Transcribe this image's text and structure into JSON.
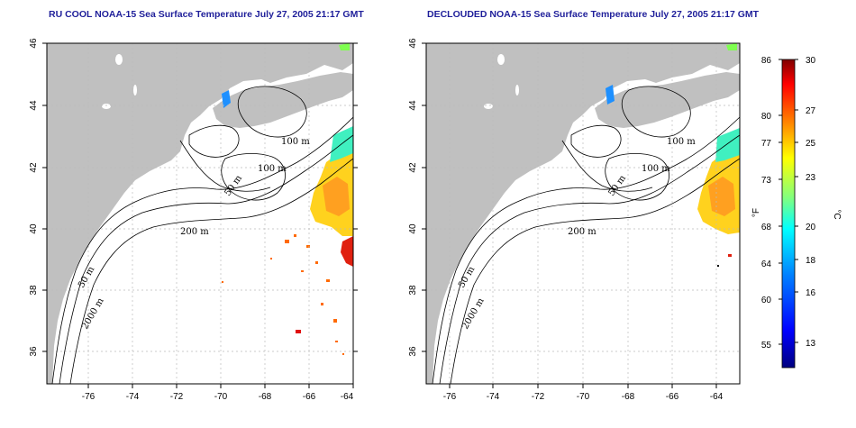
{
  "panels": [
    {
      "id": "left",
      "title": "RU COOL NOAA-15 Sea Surface Temperature July 27, 2005 21:17 GMT",
      "contour_labels": [
        "100 m",
        "100 m",
        "50 m",
        "200 m",
        "50 m",
        "2000 m"
      ]
    },
    {
      "id": "right",
      "title": "DECLOUDED NOAA-15 Sea Surface Temperature July 27, 2005 21:17 GMT",
      "contour_labels": [
        "100 m",
        "100 m",
        "50 m",
        "200 m",
        "50 m",
        "2000 m"
      ]
    }
  ],
  "axes": {
    "lon_ticks": [
      "-76",
      "-74",
      "-72",
      "-70",
      "-68",
      "-66",
      "-64"
    ],
    "lat_ticks": [
      "36",
      "38",
      "40",
      "42",
      "44",
      "46"
    ]
  },
  "colorbar": {
    "fahrenheit_label": "°F",
    "celsius_label": "°C",
    "fahrenheit_ticks": [
      "86",
      "80",
      "77",
      "73",
      "68",
      "64",
      "60",
      "55"
    ],
    "celsius_ticks": [
      "30",
      "27",
      "25",
      "23",
      "20",
      "18",
      "16",
      "13"
    ],
    "colors": [
      "#00007f",
      "#0000ff",
      "#0080ff",
      "#00ffff",
      "#80ff80",
      "#ffff00",
      "#ff8000",
      "#ff0000",
      "#7f0000"
    ]
  },
  "colors": {
    "land": "#c0c0c0",
    "ocean": "#ffffff",
    "contour": "#000000",
    "grid": "#bbbbbb",
    "title": "#1f1f9a"
  }
}
